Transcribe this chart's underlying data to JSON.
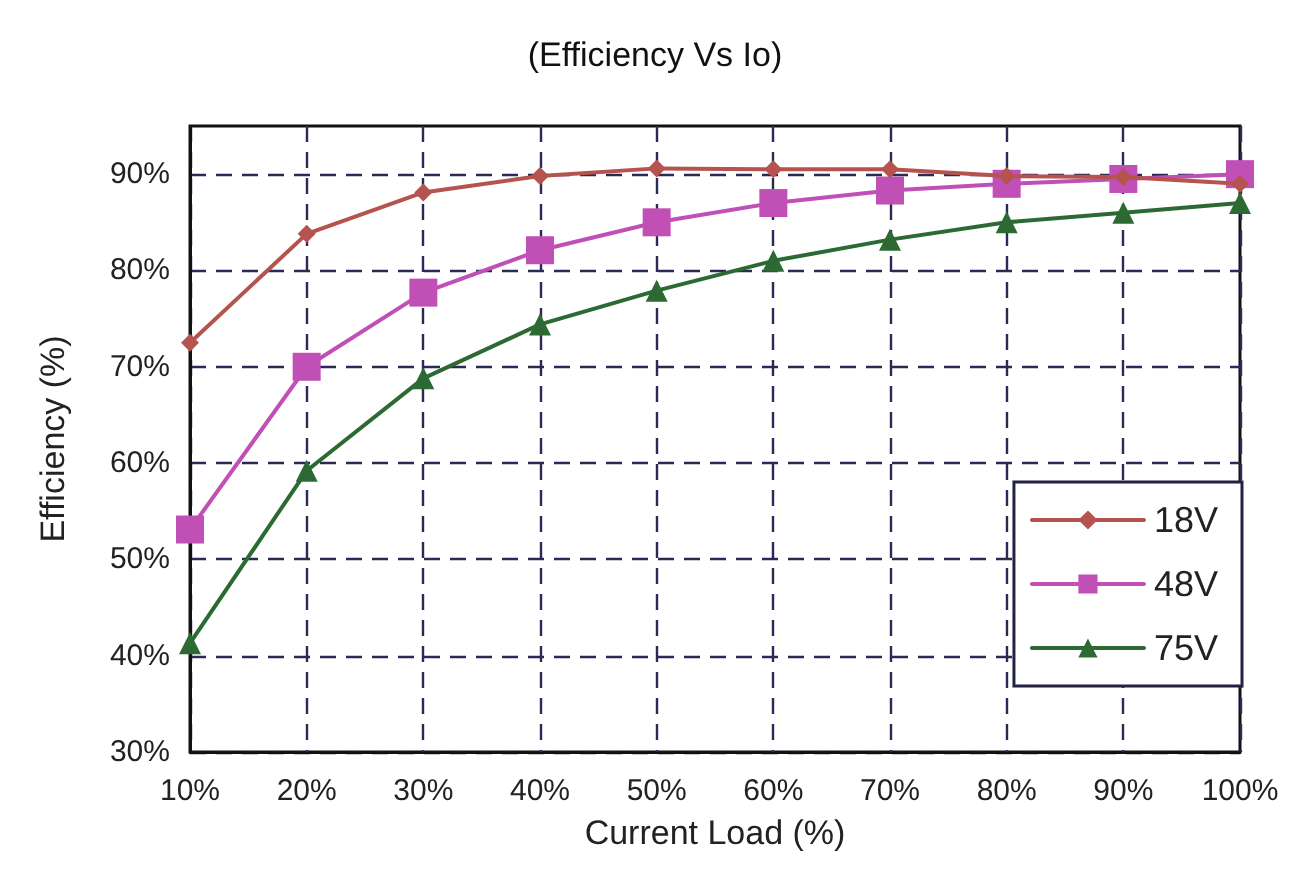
{
  "chart_data": {
    "type": "line",
    "title": "(Efficiency Vs Io)",
    "xlabel": "Current Load (%)",
    "ylabel": "Efficiency (%)",
    "x": [
      10,
      20,
      30,
      40,
      50,
      60,
      70,
      80,
      90,
      100
    ],
    "series": [
      {
        "name": "18V",
        "color": "#b5534f",
        "marker": "diamond",
        "values": [
          72.5,
          83.8,
          88.1,
          89.8,
          90.6,
          90.5,
          90.5,
          89.8,
          89.7,
          89
        ]
      },
      {
        "name": "48V",
        "color": "#c050b5",
        "marker": "square",
        "values": [
          53.1,
          70,
          77.7,
          82.1,
          85,
          87,
          88.3,
          89,
          89.5,
          90
        ]
      },
      {
        "name": "75V",
        "color": "#2d6a33",
        "marker": "triangle",
        "values": [
          41.3,
          59.2,
          68.8,
          74.4,
          77.9,
          81,
          83.2,
          85,
          86,
          87
        ]
      }
    ],
    "xlim": [
      10,
      100
    ],
    "ylim": [
      30,
      95
    ],
    "xticks": [
      {
        "value": 10,
        "label": "10%"
      },
      {
        "value": 20,
        "label": "20%"
      },
      {
        "value": 30,
        "label": "30%"
      },
      {
        "value": 40,
        "label": "40%"
      },
      {
        "value": 50,
        "label": "50%"
      },
      {
        "value": 60,
        "label": "60%"
      },
      {
        "value": 70,
        "label": "70%"
      },
      {
        "value": 80,
        "label": "80%"
      },
      {
        "value": 90,
        "label": "90%"
      },
      {
        "value": 100,
        "label": "100%"
      }
    ],
    "yticks": [
      {
        "value": 30,
        "label": "30%"
      },
      {
        "value": 40,
        "label": "40%"
      },
      {
        "value": 50,
        "label": "50%"
      },
      {
        "value": 60,
        "label": "60%"
      },
      {
        "value": 70,
        "label": "70%"
      },
      {
        "value": 80,
        "label": "80%"
      },
      {
        "value": 90,
        "label": "90%"
      }
    ],
    "grid": true,
    "legend": "bottom right",
    "line_style": "solid"
  }
}
